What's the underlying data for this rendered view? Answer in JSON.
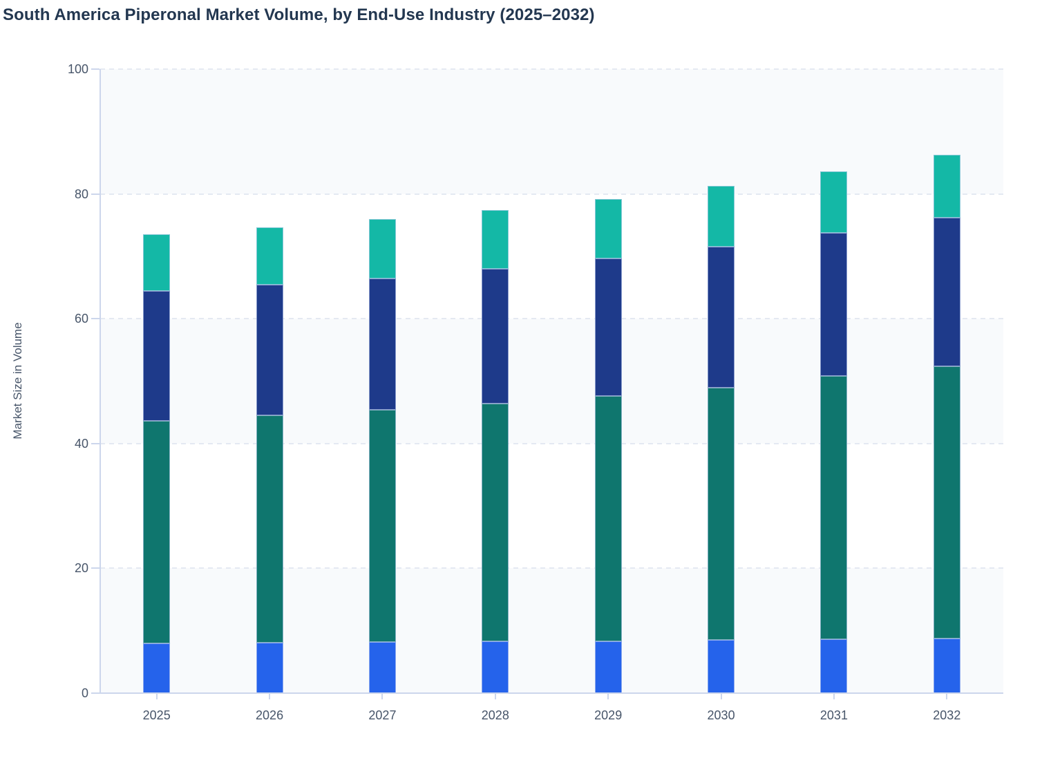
{
  "title": "South America Piperonal Market Volume, by End-Use Industry (2025–2032)",
  "colors": {
    "title_text": "#233750",
    "axis_text": "#475569",
    "axis_line": "#ccd6ec",
    "gridline": "#e4e9f2",
    "band_fill": "#f8fafc",
    "background": "#ffffff",
    "segment_blue": "#2563eb",
    "segment_teal": "#0f766e",
    "segment_navy": "#1e3a8a",
    "segment_mint": "#14b8a6"
  },
  "chart_data": {
    "type": "bar",
    "stacked": true,
    "title": "South America Piperonal Market Volume, by End-Use Industry (2025–2032)",
    "xlabel": "",
    "ylabel": "Market Size in Volume",
    "ylim": [
      0,
      100
    ],
    "yticks": [
      0,
      20,
      40,
      60,
      80,
      100
    ],
    "grid": "horizontal-dashed",
    "alternating_bands": true,
    "legend": "none",
    "categories": [
      "2025",
      "2026",
      "2027",
      "2028",
      "2029",
      "2030",
      "2031",
      "2032"
    ],
    "series": [
      {
        "name": "segment-1-bottom-blue",
        "color": "#2563eb",
        "values": [
          8.0,
          8.1,
          8.2,
          8.3,
          8.3,
          8.5,
          8.6,
          8.7
        ]
      },
      {
        "name": "segment-2-teal",
        "color": "#0f766e",
        "values": [
          35.6,
          36.4,
          37.2,
          38.1,
          39.3,
          40.5,
          42.2,
          43.7
        ]
      },
      {
        "name": "segment-3-navy",
        "color": "#1e3a8a",
        "values": [
          20.8,
          20.9,
          21.1,
          21.6,
          22.1,
          22.5,
          23.0,
          23.8
        ]
      },
      {
        "name": "segment-4-top-mint",
        "color": "#14b8a6",
        "values": [
          9.1,
          9.2,
          9.5,
          9.4,
          9.5,
          9.8,
          9.8,
          10.1
        ]
      }
    ],
    "totals": [
      73.5,
      74.6,
      76.0,
      77.4,
      79.2,
      81.3,
      83.6,
      86.3
    ]
  }
}
